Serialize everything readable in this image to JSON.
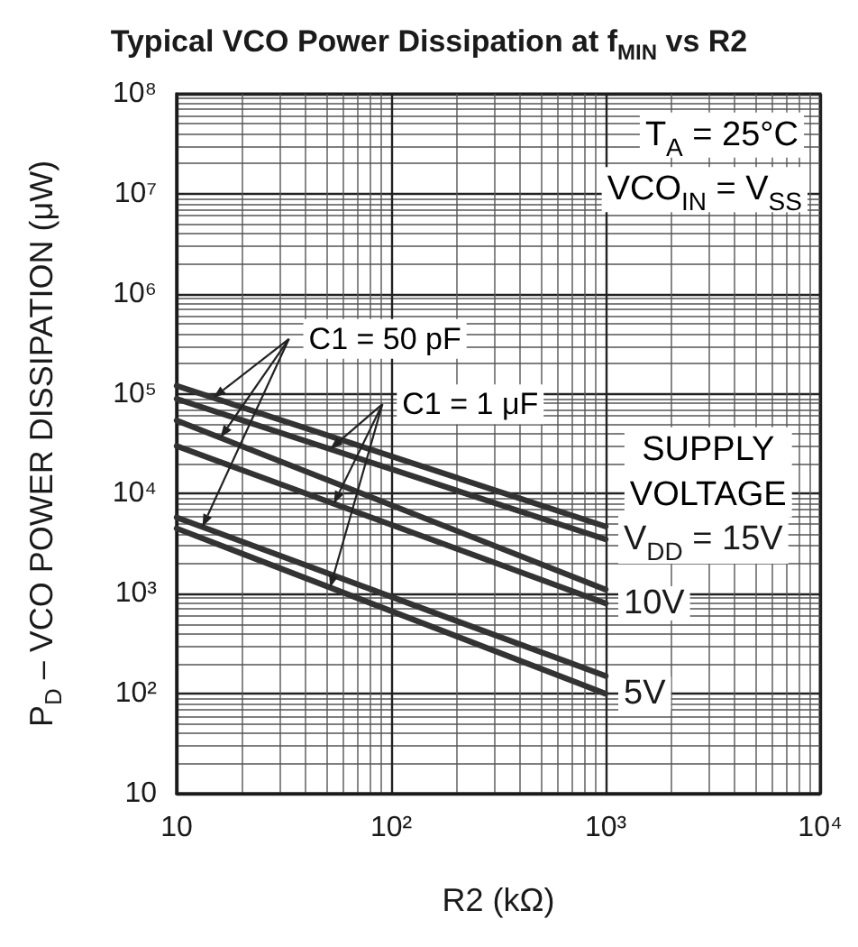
{
  "chart_data": {
    "type": "line",
    "title": "Typical VCO Power Dissipation at f$_{MIN}$ vs R2",
    "xlabel": "R2 (kΩ)",
    "ylabel": "P$_{D}$ – VCO POWER DISSIPATION (μW)",
    "annotations": [
      "T$_{A}$ = 25°C",
      "VCO$_{IN}$ = V$_{SS}$",
      {
        "text": "C1 = 50 pF",
        "x": 16,
        "y": 36000
      },
      {
        "text": "C1 = 1 μF",
        "x": 54,
        "y": 8000
      },
      "SUPPLY VOLTAGE"
    ],
    "x": [
      10,
      1000
    ],
    "series": [
      {
        "color": "#333333",
        "values": [
          120000,
          4700
        ]
      },
      {
        "name": "V$_{DD}$ = 15V",
        "color": "#333333",
        "values": [
          89000,
          3500
        ]
      },
      {
        "color": "#333333",
        "values": [
          54000,
          1100
        ]
      },
      {
        "name": "10V",
        "color": "#333333",
        "values": [
          30000,
          800
        ]
      },
      {
        "color": "#333333",
        "values": [
          5800,
          150
        ]
      },
      {
        "name": "5V",
        "color": "#333333",
        "values": [
          4500,
          100
        ]
      }
    ],
    "xlim": [
      10,
      10000
    ],
    "xticks": [
      10,
      {
        "value": 100,
        "label": "10²"
      },
      {
        "value": 1000,
        "label": "10³"
      },
      {
        "value": 10000,
        "label": "10⁴"
      }
    ],
    "ylim": [
      10,
      100000000
    ],
    "yticks": [
      10,
      {
        "value": 100,
        "label": "10²"
      },
      {
        "value": 1000,
        "label": "10³"
      },
      {
        "value": 10000,
        "label": "10⁴"
      },
      {
        "value": 100000,
        "label": "10⁵"
      },
      {
        "value": 1000000,
        "label": "10⁶"
      },
      {
        "value": 10000000,
        "label": "10⁷"
      },
      {
        "value": 100000000,
        "label": "10⁸"
      }
    ],
    "log": "xy",
    "grid": true,
    "marker": "none",
    "line_style": "solid"
  }
}
